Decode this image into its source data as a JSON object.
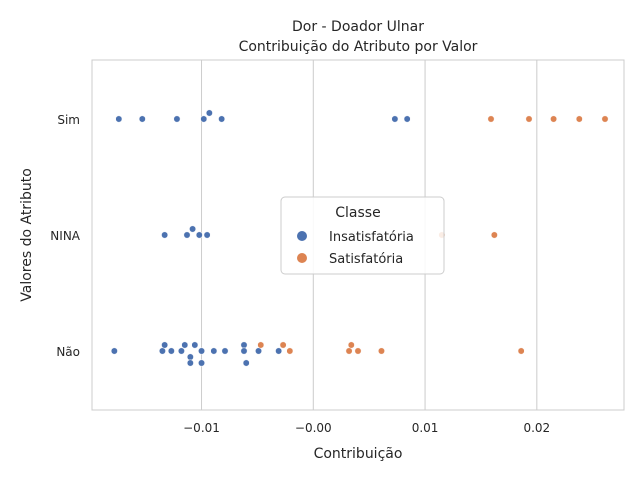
{
  "chart_data": {
    "type": "scatter",
    "title": "Dor - Doador Ulnar",
    "subtitle": "Contribuição do Atributo por Valor",
    "xlabel": "Contribuição",
    "ylabel": "Valores do Atributo",
    "xlim": [
      -0.0198,
      0.0278
    ],
    "x_ticks": [
      {
        "value": -0.01,
        "label": "−0.01"
      },
      {
        "value": 0.0,
        "label": "−0.00"
      },
      {
        "value": 0.01,
        "label": "0.01"
      },
      {
        "value": 0.02,
        "label": "0.02"
      }
    ],
    "categories": [
      "Sim",
      "NINA",
      "Não"
    ],
    "grid": true,
    "legend": {
      "title": "Classe",
      "placement": "center-right"
    },
    "series": [
      {
        "name": "Insatisfatória",
        "color": "#4c72b0",
        "points": [
          {
            "category": "Sim",
            "x": -0.0174,
            "offset": 0
          },
          {
            "category": "Sim",
            "x": -0.0153,
            "offset": 0
          },
          {
            "category": "Sim",
            "x": -0.0122,
            "offset": 0
          },
          {
            "category": "Sim",
            "x": -0.0098,
            "offset": 0
          },
          {
            "category": "Sim",
            "x": -0.0093,
            "offset": 1
          },
          {
            "category": "Sim",
            "x": -0.0082,
            "offset": 0
          },
          {
            "category": "Sim",
            "x": 0.0073,
            "offset": 0
          },
          {
            "category": "Sim",
            "x": 0.0084,
            "offset": 0
          },
          {
            "category": "NINA",
            "x": -0.0133,
            "offset": 0
          },
          {
            "category": "NINA",
            "x": -0.0113,
            "offset": 0
          },
          {
            "category": "NINA",
            "x": -0.0108,
            "offset": 1
          },
          {
            "category": "NINA",
            "x": -0.0102,
            "offset": 0
          },
          {
            "category": "NINA",
            "x": -0.0095,
            "offset": 0
          },
          {
            "category": "Não",
            "x": -0.0178,
            "offset": 0
          },
          {
            "category": "Não",
            "x": -0.0135,
            "offset": 0
          },
          {
            "category": "Não",
            "x": -0.0133,
            "offset": 1
          },
          {
            "category": "Não",
            "x": -0.0127,
            "offset": 0
          },
          {
            "category": "Não",
            "x": -0.0118,
            "offset": 0
          },
          {
            "category": "Não",
            "x": -0.0115,
            "offset": 1
          },
          {
            "category": "Não",
            "x": -0.011,
            "offset": -1
          },
          {
            "category": "Não",
            "x": -0.011,
            "offset": -2
          },
          {
            "category": "Não",
            "x": -0.0106,
            "offset": 1
          },
          {
            "category": "Não",
            "x": -0.01,
            "offset": 0
          },
          {
            "category": "Não",
            "x": -0.01,
            "offset": -2
          },
          {
            "category": "Não",
            "x": -0.0089,
            "offset": 0
          },
          {
            "category": "Não",
            "x": -0.0079,
            "offset": 0
          },
          {
            "category": "Não",
            "x": -0.0062,
            "offset": 1
          },
          {
            "category": "Não",
            "x": -0.0062,
            "offset": 0
          },
          {
            "category": "Não",
            "x": -0.006,
            "offset": -2
          },
          {
            "category": "Não",
            "x": -0.0049,
            "offset": 0
          },
          {
            "category": "Não",
            "x": -0.0031,
            "offset": 0
          }
        ]
      },
      {
        "name": "Satisfatória",
        "color": "#dd8452",
        "points": [
          {
            "category": "Sim",
            "x": 0.0159,
            "offset": 0
          },
          {
            "category": "Sim",
            "x": 0.0193,
            "offset": 0
          },
          {
            "category": "Sim",
            "x": 0.0215,
            "offset": 0
          },
          {
            "category": "Sim",
            "x": 0.0238,
            "offset": 0
          },
          {
            "category": "Sim",
            "x": 0.0261,
            "offset": 0
          },
          {
            "category": "NINA",
            "x": 0.0115,
            "offset": 0
          },
          {
            "category": "NINA",
            "x": 0.0162,
            "offset": 0
          },
          {
            "category": "Não",
            "x": -0.0047,
            "offset": 1
          },
          {
            "category": "Não",
            "x": -0.0027,
            "offset": 1
          },
          {
            "category": "Não",
            "x": -0.0021,
            "offset": 0
          },
          {
            "category": "Não",
            "x": 0.0032,
            "offset": 0
          },
          {
            "category": "Não",
            "x": 0.0034,
            "offset": 1
          },
          {
            "category": "Não",
            "x": 0.004,
            "offset": 0
          },
          {
            "category": "Não",
            "x": 0.0061,
            "offset": 0
          },
          {
            "category": "Não",
            "x": 0.0186,
            "offset": 0
          }
        ]
      }
    ]
  }
}
